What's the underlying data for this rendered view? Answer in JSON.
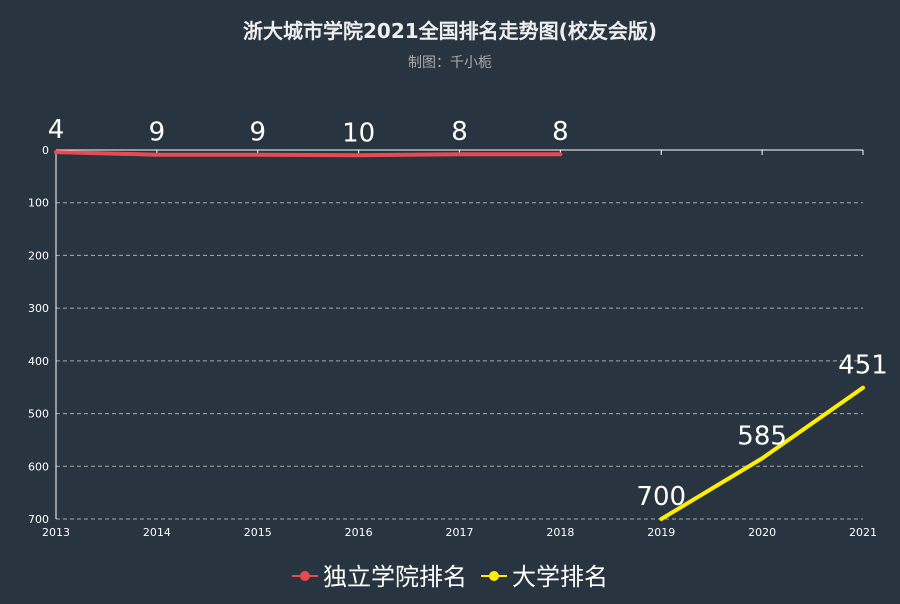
{
  "chart_data": {
    "type": "line",
    "title": "浙大城市学院2021全国排名走势图(校友会版)",
    "subtitle": "制图：千小栀",
    "x": [
      "2013",
      "2014",
      "2015",
      "2016",
      "2017",
      "2018",
      "2019",
      "2020",
      "2021"
    ],
    "y_ticks": [
      "0",
      "100",
      "200",
      "300",
      "400",
      "500",
      "600",
      "700"
    ],
    "ylim": [
      0,
      700
    ],
    "y_inverted": true,
    "grid": true,
    "legend_position": "bottom",
    "series": [
      {
        "name": "独立学院排名",
        "color": "#e84a4f",
        "values": [
          4,
          9,
          9,
          10,
          8,
          8,
          null,
          null,
          null
        ],
        "labels": [
          "4",
          "9",
          "9",
          "10",
          "8",
          "8",
          "",
          "",
          ""
        ]
      },
      {
        "name": "大学排名",
        "color": "#ffee00",
        "values": [
          null,
          null,
          null,
          null,
          null,
          null,
          700,
          585,
          451
        ],
        "labels": [
          "",
          "",
          "",
          "",
          "",
          "",
          "700",
          "585",
          "451"
        ]
      }
    ]
  },
  "colors": {
    "background": "#283440",
    "title": "#eeeeee",
    "subtitle": "#aaaaaa",
    "axis": "#ffffff",
    "grid": "#aaaaaa"
  }
}
